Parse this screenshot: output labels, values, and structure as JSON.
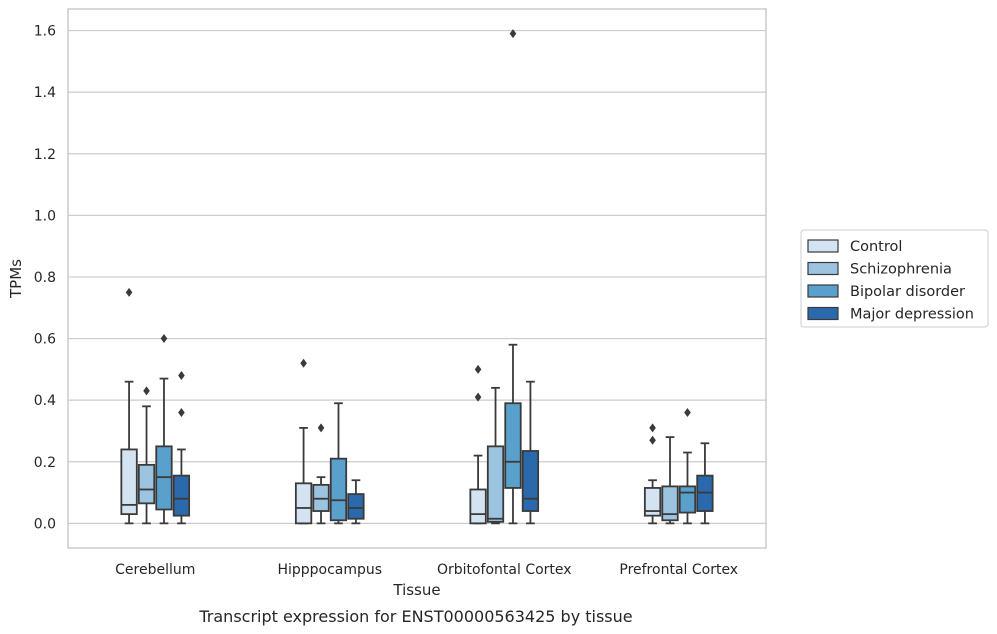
{
  "chart_data": {
    "type": "box",
    "xlabel": "Tissue",
    "ylabel": "TPMs",
    "caption": "Transcript expression for ENST00000563425 by tissue",
    "ylim": [
      -0.08,
      1.67
    ],
    "yticks": [
      0.0,
      0.2,
      0.4,
      0.6,
      0.8,
      1.0,
      1.2,
      1.4,
      1.6
    ],
    "ytick_labels": [
      "0.0",
      "0.2",
      "0.4",
      "0.6",
      "0.8",
      "1.0",
      "1.2",
      "1.4",
      "1.6"
    ],
    "grid": "horizontal",
    "legend_position": "right",
    "categories": [
      "Cerebellum",
      "Hipppocampus",
      "Orbitofontal Cortex",
      "Prefrontal Cortex"
    ],
    "series": [
      {
        "name": "Control",
        "color": "#d3e3f2",
        "boxes": [
          {
            "whislo": 0.0,
            "q1": 0.03,
            "med": 0.06,
            "q3": 0.24,
            "whishi": 0.46,
            "fliers": [
              0.75
            ]
          },
          {
            "whislo": 0.0,
            "q1": 0.0,
            "med": 0.05,
            "q3": 0.13,
            "whishi": 0.31,
            "fliers": [
              0.52
            ]
          },
          {
            "whislo": 0.0,
            "q1": 0.0,
            "med": 0.03,
            "q3": 0.11,
            "whishi": 0.22,
            "fliers": [
              0.41,
              0.5
            ]
          },
          {
            "whislo": 0.0,
            "q1": 0.025,
            "med": 0.04,
            "q3": 0.115,
            "whishi": 0.14,
            "fliers": [
              0.27,
              0.31
            ]
          }
        ]
      },
      {
        "name": "Schizophrenia",
        "color": "#9cc3df",
        "boxes": [
          {
            "whislo": 0.0,
            "q1": 0.065,
            "med": 0.11,
            "q3": 0.19,
            "whishi": 0.38,
            "fliers": [
              0.43
            ]
          },
          {
            "whislo": 0.0,
            "q1": 0.04,
            "med": 0.08,
            "q3": 0.125,
            "whishi": 0.15,
            "fliers": [
              0.31
            ]
          },
          {
            "whislo": 0.0,
            "q1": 0.005,
            "med": 0.015,
            "q3": 0.25,
            "whishi": 0.44,
            "fliers": []
          },
          {
            "whislo": 0.0,
            "q1": 0.01,
            "med": 0.03,
            "q3": 0.12,
            "whishi": 0.28,
            "fliers": []
          }
        ]
      },
      {
        "name": "Bipolar disorder",
        "color": "#5aa0cd",
        "boxes": [
          {
            "whislo": 0.0,
            "q1": 0.045,
            "med": 0.15,
            "q3": 0.25,
            "whishi": 0.47,
            "fliers": [
              0.6
            ]
          },
          {
            "whislo": 0.0,
            "q1": 0.01,
            "med": 0.075,
            "q3": 0.21,
            "whishi": 0.39,
            "fliers": []
          },
          {
            "whislo": 0.0,
            "q1": 0.115,
            "med": 0.2,
            "q3": 0.39,
            "whishi": 0.58,
            "fliers": [
              1.59
            ]
          },
          {
            "whislo": 0.0,
            "q1": 0.035,
            "med": 0.1,
            "q3": 0.12,
            "whishi": 0.23,
            "fliers": [
              0.36
            ]
          }
        ]
      },
      {
        "name": "Major depression",
        "color": "#2a6aac",
        "boxes": [
          {
            "whislo": 0.0,
            "q1": 0.025,
            "med": 0.08,
            "q3": 0.155,
            "whishi": 0.24,
            "fliers": [
              0.36,
              0.48
            ]
          },
          {
            "whislo": 0.0,
            "q1": 0.015,
            "med": 0.05,
            "q3": 0.095,
            "whishi": 0.14,
            "fliers": []
          },
          {
            "whislo": 0.0,
            "q1": 0.04,
            "med": 0.08,
            "q3": 0.235,
            "whishi": 0.46,
            "fliers": []
          },
          {
            "whislo": 0.0,
            "q1": 0.04,
            "med": 0.1,
            "q3": 0.155,
            "whishi": 0.26,
            "fliers": []
          }
        ]
      }
    ]
  }
}
